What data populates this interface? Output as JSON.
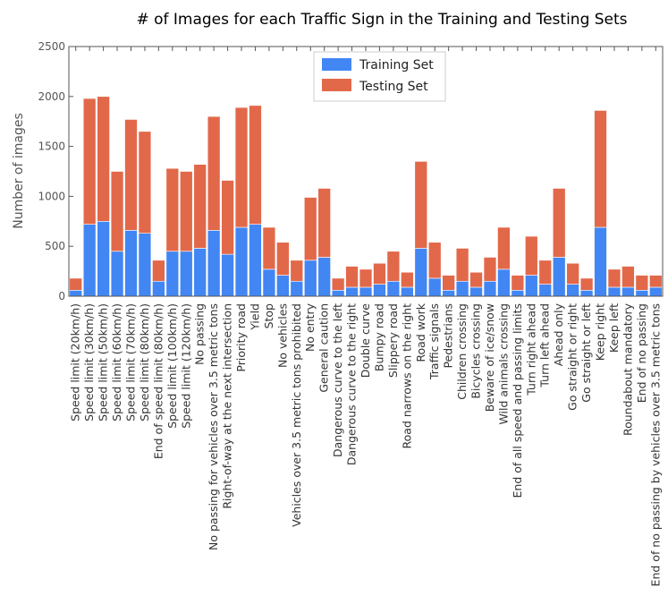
{
  "chart_data": {
    "type": "bar",
    "stacked": true,
    "title": "# of Images for each Traffic Sign in the Training and Testing Sets",
    "xlabel": "",
    "ylabel": "Number of images",
    "ylim": [
      0,
      2500
    ],
    "yticks": [
      0,
      500,
      1000,
      1500,
      2000,
      2500
    ],
    "grid": false,
    "legend_position": "top-center",
    "categories": [
      "Speed limit (20km/h)",
      "Speed limit (30km/h)",
      "Speed limit (50km/h)",
      "Speed limit (60km/h)",
      "Speed limit (70km/h)",
      "Speed limit (80km/h)",
      "End of speed limit (80km/h)",
      "Speed limit (100km/h)",
      "Speed limit (120km/h)",
      "No passing",
      "No passing for vehicles over 3.5 metric tons",
      "Right-of-way at the next intersection",
      "Priority road",
      "Yield",
      "Stop",
      "No vehicles",
      "Vehicles over 3.5 metric tons prohibited",
      "No entry",
      "General caution",
      "Dangerous curve to the left",
      "Dangerous curve to the right",
      "Double curve",
      "Bumpy road",
      "Slippery road",
      "Road narrows on the right",
      "Road work",
      "Traffic signals",
      "Pedestrians",
      "Children crossing",
      "Bicycles crossing",
      "Beware of ice/snow",
      "Wild animals crossing",
      "End of all speed and passing limits",
      "Turn right ahead",
      "Turn left ahead",
      "Ahead only",
      "Go straight or right",
      "Go straight or left",
      "Keep right",
      "Keep left",
      "Roundabout mandatory",
      "End of no passing",
      "End of no passing by vehicles over 3.5 metric tons"
    ],
    "series": [
      {
        "name": "Training Set",
        "color": "#4286f4",
        "values": [
          60,
          720,
          750,
          450,
          660,
          630,
          150,
          450,
          450,
          480,
          660,
          420,
          690,
          720,
          270,
          210,
          150,
          360,
          390,
          60,
          90,
          90,
          120,
          150,
          90,
          480,
          180,
          60,
          150,
          90,
          150,
          270,
          60,
          210,
          120,
          390,
          120,
          60,
          690,
          90,
          90,
          60,
          90
        ]
      },
      {
        "name": "Testing Set",
        "color": "#e2684a",
        "values": [
          120,
          1260,
          1250,
          800,
          1110,
          1020,
          210,
          830,
          800,
          840,
          1140,
          740,
          1200,
          1190,
          420,
          330,
          210,
          630,
          690,
          120,
          210,
          180,
          210,
          300,
          150,
          870,
          360,
          150,
          330,
          150,
          240,
          420,
          150,
          390,
          240,
          690,
          210,
          120,
          1170,
          180,
          210,
          150,
          120
        ]
      }
    ]
  }
}
